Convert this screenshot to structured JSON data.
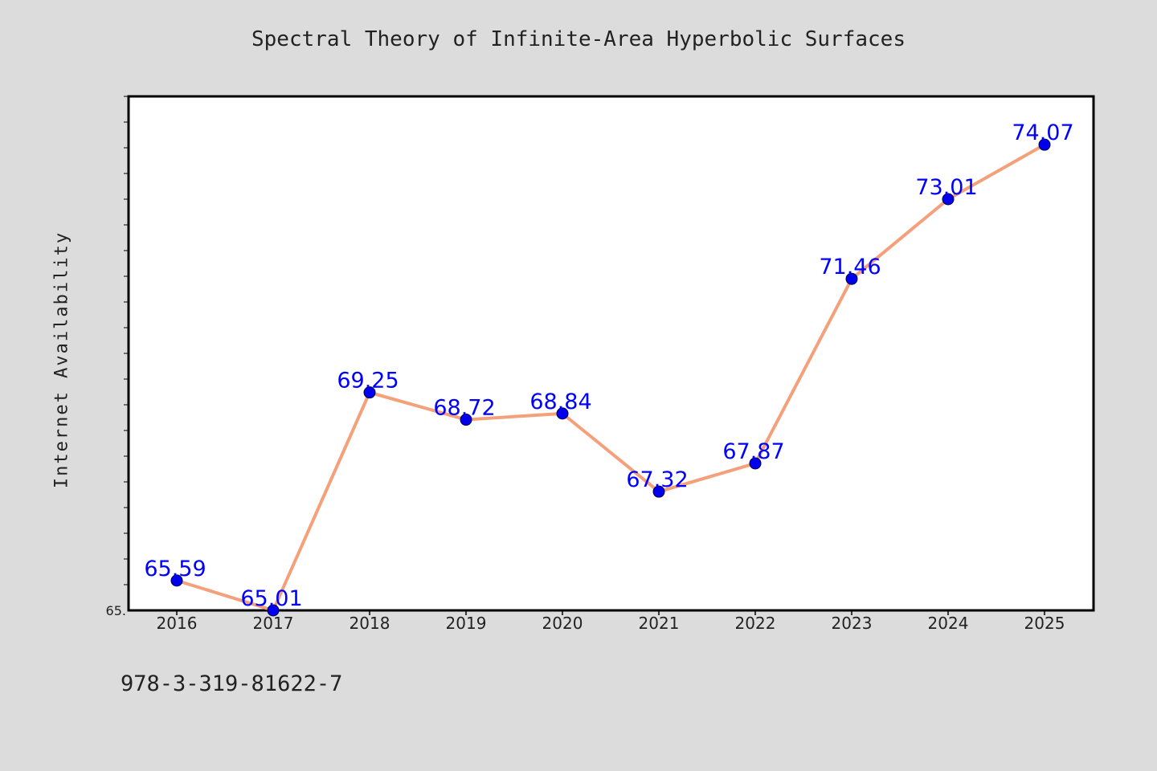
{
  "page": {
    "footer_text": "978-3-319-81622-7"
  },
  "chart_data": {
    "type": "line",
    "title": "Spectral Theory of Infinite-Area Hyperbolic Surfaces",
    "xlabel": "",
    "ylabel": "Internet Availability",
    "categories": [
      "2016",
      "2017",
      "2018",
      "2019",
      "2020",
      "2021",
      "2022",
      "2023",
      "2024",
      "2025"
    ],
    "series": [
      {
        "values": [
          65.59,
          65.01,
          69.25,
          68.72,
          68.84,
          67.32,
          67.87,
          71.46,
          73.01,
          74.07
        ],
        "labels": [
          "65.59",
          "65.01",
          "69.25",
          "68.72",
          "68.84",
          "67.32",
          "67.87",
          "71.46",
          "73.01",
          "74.07"
        ],
        "line_color": "#f4a07a",
        "marker_color": "#0000ee",
        "label_color": "#0000ff"
      }
    ],
    "ylim": [
      65.01,
      75.01
    ],
    "y_tick_label": "65.",
    "grid": false,
    "legend": "none"
  }
}
